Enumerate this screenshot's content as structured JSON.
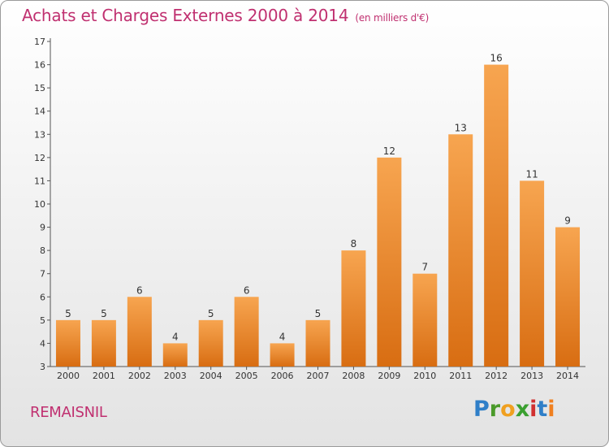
{
  "title": "Achats et Charges Externes 2000 à 2014",
  "unit": "(en milliers d'€)",
  "town": "REMAISNIL",
  "logo": {
    "letters": [
      "P",
      "r",
      "o",
      "x",
      "i",
      "t",
      "i"
    ],
    "colors": [
      "#2f7fc8",
      "#4a9a2a",
      "#f0a020",
      "#3aa030",
      "#d03030",
      "#2f7fc8",
      "#f08020"
    ]
  },
  "colors": {
    "title": "#c03070",
    "bar_light": "#f7a550",
    "bar_dark": "#d86d12",
    "axis": "#555555"
  },
  "chart_data": {
    "type": "bar",
    "title": "Achats et Charges Externes 2000 à 2014",
    "subtitle": "(en milliers d'€)",
    "xlabel": "",
    "ylabel": "",
    "categories": [
      "2000",
      "2001",
      "2002",
      "2003",
      "2004",
      "2005",
      "2006",
      "2007",
      "2008",
      "2009",
      "2010",
      "2011",
      "2012",
      "2013",
      "2014"
    ],
    "values": [
      5,
      5,
      6,
      4,
      5,
      6,
      4,
      5,
      8,
      12,
      7,
      13,
      16,
      11,
      9
    ],
    "ylim": [
      3,
      17
    ],
    "yticks": [
      3,
      4,
      5,
      6,
      7,
      8,
      9,
      10,
      11,
      12,
      13,
      14,
      15,
      16,
      17
    ],
    "grid": false,
    "legend": "none"
  }
}
